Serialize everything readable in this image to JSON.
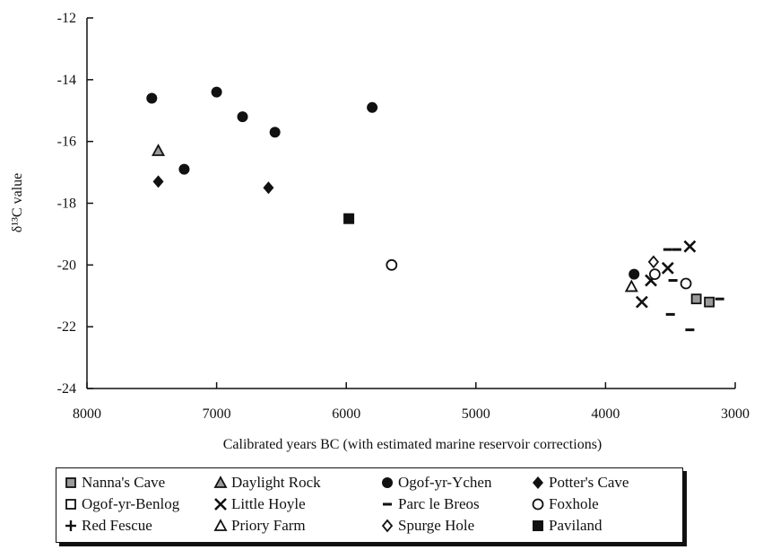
{
  "chart_data": {
    "type": "scatter",
    "title": "",
    "xlabel": "Calibrated years BC (with estimated marine reservoir corrections)",
    "ylabel": "δ¹³C value",
    "xlim": [
      8000,
      3000
    ],
    "ylim": [
      -24,
      -12
    ],
    "x_reversed": true,
    "x_ticks": [
      8000,
      7000,
      6000,
      5000,
      4000,
      3000
    ],
    "y_ticks": [
      -12,
      -14,
      -16,
      -18,
      -20,
      -22,
      -24
    ],
    "grid": false,
    "legend_position": "bottom",
    "series": [
      {
        "name": "Nanna's Cave",
        "marker": "square-grey",
        "points": [
          [
            3300,
            -21.1
          ],
          [
            3200,
            -21.2
          ]
        ]
      },
      {
        "name": "Daylight Rock",
        "marker": "triangle-grey",
        "points": [
          [
            7450,
            -16.3
          ]
        ]
      },
      {
        "name": "Ogof-yr-Ychen",
        "marker": "circle-filled",
        "points": [
          [
            7500,
            -14.6
          ],
          [
            7250,
            -16.9
          ],
          [
            7000,
            -14.4
          ],
          [
            6800,
            -15.2
          ],
          [
            6550,
            -15.7
          ],
          [
            5800,
            -14.9
          ],
          [
            3780,
            -20.3
          ]
        ]
      },
      {
        "name": "Potter's Cave",
        "marker": "diamond-filled",
        "points": [
          [
            7450,
            -17.3
          ],
          [
            6600,
            -17.5
          ]
        ]
      },
      {
        "name": "Ogof-yr-Benlog",
        "marker": "square-open",
        "points": []
      },
      {
        "name": "Little Hoyle",
        "marker": "cross-x",
        "points": [
          [
            3720,
            -21.2
          ],
          [
            3650,
            -20.5
          ],
          [
            3520,
            -20.1
          ],
          [
            3350,
            -19.4
          ]
        ]
      },
      {
        "name": "Parc le Breos",
        "marker": "dash",
        "points": [
          [
            3520,
            -19.5
          ],
          [
            3450,
            -19.5
          ],
          [
            3480,
            -20.5
          ],
          [
            3500,
            -21.6
          ],
          [
            3350,
            -22.1
          ],
          [
            3120,
            -21.1
          ]
        ]
      },
      {
        "name": "Foxhole",
        "marker": "circle-open",
        "points": [
          [
            5650,
            -20.0
          ],
          [
            3620,
            -20.3
          ],
          [
            3380,
            -20.6
          ]
        ]
      },
      {
        "name": "Red Fescue",
        "marker": "plus",
        "points": []
      },
      {
        "name": "Priory Farm",
        "marker": "triangle-open",
        "points": [
          [
            3800,
            -20.7
          ]
        ]
      },
      {
        "name": "Spurge Hole",
        "marker": "diamond-open",
        "points": [
          [
            3630,
            -19.9
          ]
        ]
      },
      {
        "name": "Paviland",
        "marker": "square-filled",
        "points": [
          [
            5980,
            -18.5
          ]
        ]
      }
    ]
  },
  "legend": {
    "items": [
      {
        "label": "Nanna's Cave",
        "marker": "square-grey"
      },
      {
        "label": "Daylight Rock",
        "marker": "triangle-grey"
      },
      {
        "label": "Ogof-yr-Ychen",
        "marker": "circle-filled"
      },
      {
        "label": "Potter's Cave",
        "marker": "diamond-filled"
      },
      {
        "label": "Ogof-yr-Benlog",
        "marker": "square-open"
      },
      {
        "label": "Little Hoyle",
        "marker": "cross-x"
      },
      {
        "label": "Parc le Breos",
        "marker": "dash"
      },
      {
        "label": "Foxhole",
        "marker": "circle-open"
      },
      {
        "label": "Red Fescue",
        "marker": "plus"
      },
      {
        "label": "Priory Farm",
        "marker": "triangle-open"
      },
      {
        "label": "Spurge Hole",
        "marker": "diamond-open"
      },
      {
        "label": "Paviland",
        "marker": "square-filled"
      }
    ]
  },
  "colors": {
    "ink": "#111111",
    "grey_fill": "#9a9a9a",
    "background": "#ffffff"
  }
}
